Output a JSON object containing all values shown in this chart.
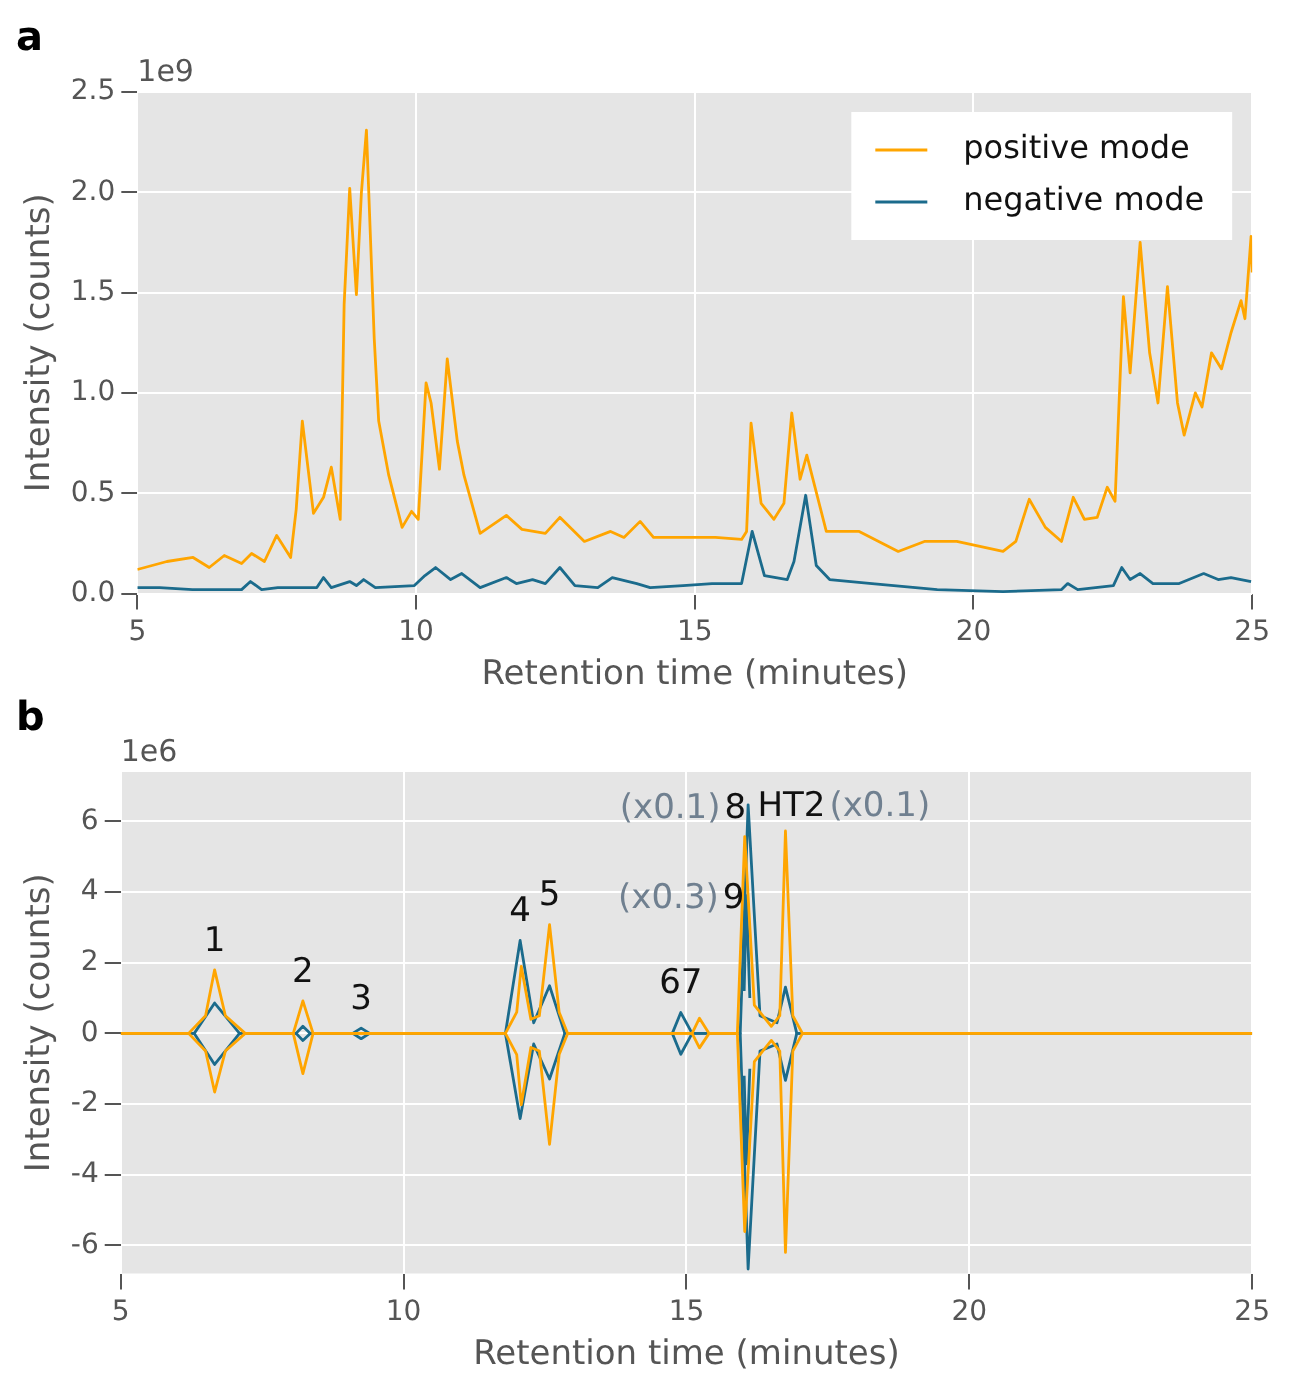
{
  "chart_data": [
    {
      "type": "line",
      "title": "a",
      "xlabel": "Retention time (minutes)",
      "ylabel": "Intensity (counts)",
      "annotations": [
        "1e9"
      ],
      "xlim": [
        5,
        25
      ],
      "xticks": [
        5,
        10,
        15,
        20,
        25
      ],
      "ylim": [
        0,
        2.5
      ],
      "yticks": [
        {
          "value": 0,
          "label": "0.0"
        },
        {
          "value": 0.5,
          "label": "0.5"
        },
        {
          "value": 1,
          "label": "1.0"
        },
        {
          "value": 1.5,
          "label": "1.5"
        },
        {
          "value": 2,
          "label": "2.0"
        },
        {
          "value": 2.5,
          "label": "2.5"
        }
      ],
      "grid": true,
      "legend": "top right",
      "marker": "none",
      "line_style": "solid",
      "series": [
        {
          "name": "positive mode",
          "color": "#ffa500",
          "x": [
            5,
            5.53,
            6.0,
            6.29,
            6.56,
            6.87,
            7.05,
            7.28,
            7.5,
            7.75,
            7.85,
            7.96,
            8.16,
            8.34,
            8.48,
            8.64,
            8.71,
            8.81,
            8.93,
            9.02,
            9.11,
            9.25,
            9.33,
            9.51,
            9.75,
            9.92,
            10.04,
            10.18,
            10.27,
            10.42,
            10.56,
            10.74,
            10.86,
            11.15,
            11.62,
            11.9,
            12.32,
            12.58,
            13.02,
            13.49,
            13.73,
            14.02,
            14.26,
            14.79,
            15.37,
            15.84,
            15.93,
            16.01,
            16.19,
            16.42,
            16.6,
            16.74,
            16.89,
            17.01,
            17.36,
            17.95,
            18.65,
            19.12,
            19.7,
            20.53,
            20.76,
            21.0,
            21.29,
            21.58,
            21.79,
            21.99,
            22.22,
            22.4,
            22.54,
            22.69,
            22.81,
            22.99,
            23.16,
            23.31,
            23.48,
            23.66,
            23.78,
            23.98,
            24.1,
            24.27,
            24.45,
            24.62,
            24.8,
            24.87,
            24.98,
            25
          ],
          "values": [
            0.12,
            0.16,
            0.18,
            0.13,
            0.19,
            0.15,
            0.2,
            0.16,
            0.29,
            0.18,
            0.42,
            0.86,
            0.4,
            0.48,
            0.63,
            0.37,
            1.44,
            2.02,
            1.49,
            2.0,
            2.31,
            1.27,
            0.86,
            0.59,
            0.33,
            0.41,
            0.37,
            1.05,
            0.95,
            0.62,
            1.17,
            0.76,
            0.59,
            0.3,
            0.39,
            0.32,
            0.3,
            0.38,
            0.26,
            0.31,
            0.28,
            0.36,
            0.28,
            0.28,
            0.28,
            0.27,
            0.31,
            0.85,
            0.45,
            0.37,
            0.45,
            0.9,
            0.57,
            0.69,
            0.31,
            0.31,
            0.21,
            0.26,
            0.26,
            0.21,
            0.26,
            0.47,
            0.33,
            0.26,
            0.48,
            0.37,
            0.38,
            0.53,
            0.46,
            1.48,
            1.1,
            1.75,
            1.2,
            0.95,
            1.53,
            0.95,
            0.79,
            1.0,
            0.93,
            1.2,
            1.12,
            1.3,
            1.46,
            1.37,
            1.78,
            1.6
          ]
        },
        {
          "name": "negative mode",
          "color": "#1b6b8c",
          "x": [
            5,
            5.4,
            5.99,
            6.87,
            7.03,
            7.23,
            7.52,
            8.22,
            8.34,
            8.48,
            8.81,
            8.93,
            9.06,
            9.27,
            9.97,
            10.16,
            10.35,
            10.62,
            10.82,
            11.15,
            11.62,
            11.8,
            12.09,
            12.32,
            12.58,
            12.85,
            13.26,
            13.52,
            13.96,
            14.2,
            14.79,
            15.31,
            15.84,
            16.03,
            16.25,
            16.66,
            16.78,
            16.99,
            17.18,
            17.42,
            18.18,
            19.35,
            20.53,
            21.58,
            21.69,
            21.87,
            22.51,
            22.66,
            22.81,
            22.99,
            23.22,
            23.69,
            24.13,
            24.39,
            24.62,
            24.98
          ],
          "values": [
            0.03,
            0.03,
            0.02,
            0.02,
            0.06,
            0.02,
            0.03,
            0.03,
            0.08,
            0.03,
            0.06,
            0.04,
            0.07,
            0.03,
            0.04,
            0.09,
            0.13,
            0.07,
            0.1,
            0.03,
            0.08,
            0.05,
            0.07,
            0.05,
            0.13,
            0.04,
            0.03,
            0.08,
            0.05,
            0.03,
            0.04,
            0.05,
            0.05,
            0.31,
            0.09,
            0.07,
            0.16,
            0.49,
            0.14,
            0.07,
            0.05,
            0.02,
            0.01,
            0.02,
            0.05,
            0.02,
            0.04,
            0.13,
            0.07,
            0.1,
            0.05,
            0.05,
            0.1,
            0.07,
            0.08,
            0.06
          ]
        }
      ]
    },
    {
      "type": "line",
      "title": "b",
      "xlabel": "Retention time (minutes)",
      "ylabel": "Intensity (counts)",
      "annotations": [
        "1e6",
        {
          "text": "1",
          "x": 6.66,
          "y": 1.8
        },
        {
          "text": "2",
          "x": 8.22,
          "y": 0.92
        },
        {
          "text": "3",
          "x": 9.25,
          "y": 0.15
        },
        {
          "text": "4",
          "x": 12.06,
          "y": 2.63
        },
        {
          "text": "5",
          "x": 12.58,
          "y": 3.08
        },
        {
          "text": "67",
          "x": 14.9,
          "y": 0.59
        },
        {
          "text": "(x0.1)",
          "x": 16.09,
          "y": 6.47
        },
        {
          "text": "8",
          "x": 16.09,
          "y": 6.47
        },
        {
          "text": "HT2",
          "x": 16.75,
          "y": 5.73
        },
        {
          "text": "(x0.1)",
          "x": 16.75,
          "y": 5.73
        },
        {
          "text": "(x0.3)",
          "x": 16.06,
          "y": 3.9
        },
        {
          "text": "9",
          "x": 16.06,
          "y": 3.9
        }
      ],
      "xlim": [
        5,
        25
      ],
      "xticks": [
        5,
        10,
        15,
        20,
        25
      ],
      "ylim": [
        -6.8,
        7.4
      ],
      "yticks": [
        -6,
        -4,
        -2,
        0,
        2,
        4,
        6
      ],
      "grid": true,
      "marker": "none",
      "line_style": "solid",
      "series": [
        {
          "color": "#ffa500",
          "x": [
            5,
            6.2,
            6.5,
            6.66,
            6.85,
            7.2,
            8.05,
            8.22,
            8.4,
            11.8,
            12.0,
            12.08,
            12.25,
            12.4,
            12.58,
            12.75,
            12.9,
            15.1,
            15.23,
            15.4,
            15.9,
            16.03,
            16.2,
            16.5,
            16.65,
            16.75,
            16.88,
            17.05,
            25
          ],
          "values": [
            0,
            0,
            0.5,
            1.8,
            0.5,
            0,
            0,
            0.92,
            0,
            0,
            0.6,
            1.9,
            0.4,
            0.5,
            3.08,
            0.6,
            0,
            0,
            0.43,
            0,
            0,
            5.57,
            0.8,
            0.2,
            0.5,
            5.73,
            0.5,
            0,
            0
          ]
        },
        {
          "color": "#ffa500",
          "x": [
            5,
            6.2,
            6.5,
            6.66,
            6.85,
            7.2,
            8.05,
            8.22,
            8.4,
            11.8,
            12.0,
            12.08,
            12.25,
            12.4,
            12.58,
            12.75,
            12.9,
            15.1,
            15.23,
            15.4,
            15.9,
            16.03,
            16.2,
            16.5,
            16.65,
            16.75,
            16.88,
            17.05,
            25
          ],
          "values": [
            0,
            0,
            -0.5,
            -1.66,
            -0.5,
            0,
            0,
            -1.14,
            0,
            0,
            -0.6,
            -2.02,
            -0.4,
            -0.5,
            -3.14,
            -0.6,
            0,
            0,
            -0.41,
            0,
            0,
            -5.61,
            -0.8,
            -0.2,
            -0.5,
            -6.2,
            -0.5,
            0,
            0
          ]
        },
        {
          "color": "#1b6b8c",
          "x": [
            5,
            6.3,
            6.66,
            7.1,
            8.1,
            8.22,
            8.35,
            9.1,
            9.25,
            9.4,
            11.8,
            12.06,
            12.3,
            12.58,
            12.85,
            14.75,
            14.9,
            15.1,
            15.95,
            16.09,
            16.3,
            16.6,
            16.75,
            16.95,
            25
          ],
          "values": [
            0,
            0,
            0.86,
            0,
            0,
            0.2,
            0,
            0,
            0.15,
            0,
            0,
            2.63,
            0.3,
            1.35,
            0,
            0,
            0.59,
            0,
            0,
            6.47,
            0.5,
            0.3,
            1.31,
            0,
            0
          ]
        },
        {
          "color": "#1b6b8c",
          "x": [
            5,
            6.3,
            6.66,
            7.1,
            8.1,
            8.22,
            8.35,
            9.1,
            9.25,
            9.4,
            11.8,
            12.06,
            12.3,
            12.58,
            12.85,
            14.75,
            14.9,
            15.1,
            15.95,
            16.09,
            16.3,
            16.6,
            16.75,
            16.95,
            25
          ],
          "values": [
            0,
            0,
            -0.88,
            0,
            0,
            -0.2,
            0,
            0,
            -0.15,
            0,
            0,
            -2.41,
            -0.3,
            -1.29,
            0,
            0,
            -0.59,
            0,
            0,
            -6.67,
            -0.5,
            -0.3,
            -1.33,
            0,
            0
          ]
        },
        {
          "color": "#1b6b8c",
          "x": [
            16.02,
            16.06,
            16.12
          ],
          "values": [
            1.2,
            3.9,
            1.0
          ]
        },
        {
          "color": "#1b6b8c",
          "x": [
            16.02,
            16.06,
            16.12
          ],
          "values": [
            -1.2,
            -3.69,
            -1.0
          ]
        }
      ]
    }
  ]
}
